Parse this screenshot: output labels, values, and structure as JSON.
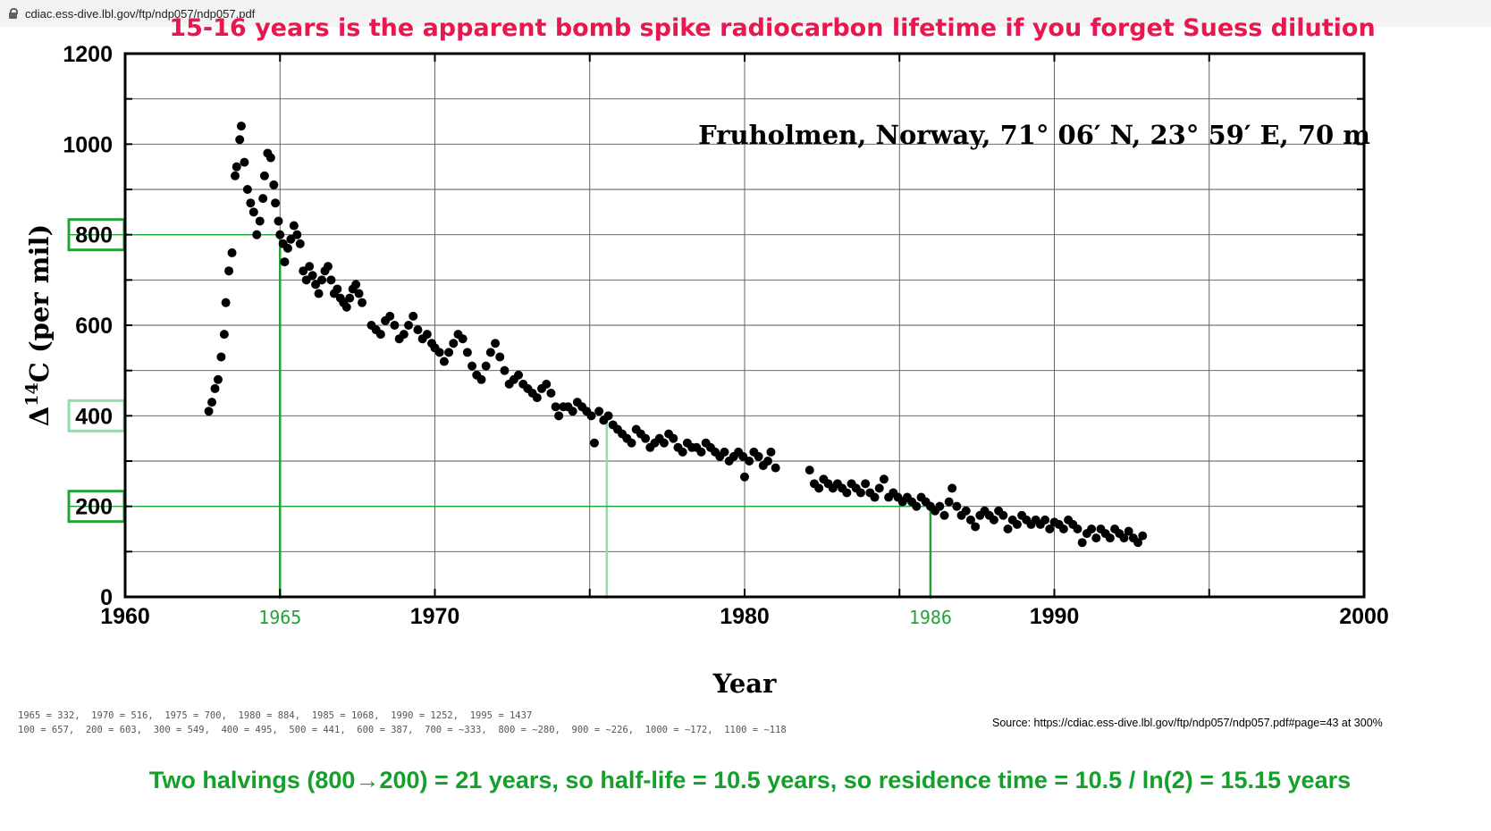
{
  "browser": {
    "url": "cdiac.ess-dive.lbl.gov/ftp/ndp057/ndp057.pdf"
  },
  "headline": "15-16 years is the apparent bomb spike radiocarbon lifetime if you forget Suess dilution",
  "conclusion": "Two halvings (800→200) = 21 years,  so half-life = 10.5 years,  so residence time = 10.5 / ln(2) = 15.15 years",
  "notes": {
    "line1": "1965 = 332,  1970 = 516,  1975 = 700,  1980 = 884,  1985 = 1068,  1990 = 1252,  1995 = 1437",
    "line2": "100 = 657,  200 = 603,  300 = 549,  400 = 495,  500 = 441,  600 = 387,  700 = ~333,  800 = ~280,  900 = ~226,  1000 = ~172,  1100 = ~118"
  },
  "source": "Source: https://cdiac.ess-dive.lbl.gov/ftp/ndp057/ndp057.pdf#page=43 at 300%",
  "colors": {
    "headline": "#e8174f",
    "conclusion": "#14a02a",
    "annotation_green": "#22a33a",
    "annotation_light_green": "#8fe0a8",
    "points": "#000000"
  },
  "chart_data": {
    "type": "scatter",
    "subtitle": "Fruholmen, Norway, 71° 06′ N, 23° 59′ E, 70 m",
    "xlabel": "Year",
    "ylabel_prefix": "Δ",
    "ylabel_sup": "14",
    "ylabel_suffix": "C (per mil)",
    "xlim": [
      1960,
      2000
    ],
    "ylim": [
      0,
      1200
    ],
    "xticks": [
      "1960",
      "1970",
      "1980",
      "1990",
      "2000"
    ],
    "yticks": [
      "0",
      "200",
      "400",
      "600",
      "800",
      "1000",
      "1200"
    ],
    "grid": true,
    "series": [
      {
        "points": [
          [
            1962.7,
            410
          ],
          [
            1962.8,
            430
          ],
          [
            1962.9,
            460
          ],
          [
            1963.0,
            480
          ],
          [
            1963.1,
            530
          ],
          [
            1963.2,
            580
          ],
          [
            1963.25,
            650
          ],
          [
            1963.35,
            720
          ],
          [
            1963.45,
            760
          ],
          [
            1963.55,
            930
          ],
          [
            1963.6,
            950
          ],
          [
            1963.7,
            1010
          ],
          [
            1963.75,
            1040
          ],
          [
            1963.85,
            960
          ],
          [
            1963.95,
            900
          ],
          [
            1964.05,
            870
          ],
          [
            1964.15,
            850
          ],
          [
            1964.25,
            800
          ],
          [
            1964.35,
            830
          ],
          [
            1964.45,
            880
          ],
          [
            1964.5,
            930
          ],
          [
            1964.6,
            980
          ],
          [
            1964.7,
            970
          ],
          [
            1964.8,
            910
          ],
          [
            1964.85,
            870
          ],
          [
            1964.95,
            830
          ],
          [
            1965.0,
            800
          ],
          [
            1965.1,
            780
          ],
          [
            1965.15,
            740
          ],
          [
            1965.25,
            770
          ],
          [
            1965.35,
            790
          ],
          [
            1965.45,
            820
          ],
          [
            1965.55,
            800
          ],
          [
            1965.65,
            780
          ],
          [
            1965.75,
            720
          ],
          [
            1965.85,
            700
          ],
          [
            1965.95,
            730
          ],
          [
            1966.05,
            710
          ],
          [
            1966.15,
            690
          ],
          [
            1966.25,
            670
          ],
          [
            1966.35,
            700
          ],
          [
            1966.45,
            720
          ],
          [
            1966.55,
            730
          ],
          [
            1966.65,
            700
          ],
          [
            1966.75,
            670
          ],
          [
            1966.85,
            680
          ],
          [
            1966.95,
            660
          ],
          [
            1967.05,
            650
          ],
          [
            1967.15,
            640
          ],
          [
            1967.25,
            660
          ],
          [
            1967.35,
            680
          ],
          [
            1967.45,
            690
          ],
          [
            1967.55,
            670
          ],
          [
            1967.65,
            650
          ],
          [
            1967.95,
            600
          ],
          [
            1968.1,
            590
          ],
          [
            1968.25,
            580
          ],
          [
            1968.4,
            610
          ],
          [
            1968.55,
            620
          ],
          [
            1968.7,
            600
          ],
          [
            1968.85,
            570
          ],
          [
            1969.0,
            580
          ],
          [
            1969.15,
            600
          ],
          [
            1969.3,
            620
          ],
          [
            1969.45,
            590
          ],
          [
            1969.6,
            570
          ],
          [
            1969.75,
            580
          ],
          [
            1969.9,
            560
          ],
          [
            1970.0,
            550
          ],
          [
            1970.15,
            540
          ],
          [
            1970.3,
            520
          ],
          [
            1970.45,
            540
          ],
          [
            1970.6,
            560
          ],
          [
            1970.75,
            580
          ],
          [
            1970.9,
            570
          ],
          [
            1971.05,
            540
          ],
          [
            1971.2,
            510
          ],
          [
            1971.35,
            490
          ],
          [
            1971.5,
            480
          ],
          [
            1971.65,
            510
          ],
          [
            1971.8,
            540
          ],
          [
            1971.95,
            560
          ],
          [
            1972.1,
            530
          ],
          [
            1972.25,
            500
          ],
          [
            1972.4,
            470
          ],
          [
            1972.55,
            480
          ],
          [
            1972.7,
            490
          ],
          [
            1972.85,
            470
          ],
          [
            1973.0,
            460
          ],
          [
            1973.15,
            450
          ],
          [
            1973.3,
            440
          ],
          [
            1973.45,
            460
          ],
          [
            1973.6,
            470
          ],
          [
            1973.75,
            450
          ],
          [
            1973.9,
            420
          ],
          [
            1974.0,
            400
          ],
          [
            1974.15,
            420
          ],
          [
            1974.3,
            420
          ],
          [
            1974.45,
            410
          ],
          [
            1974.6,
            430
          ],
          [
            1974.75,
            420
          ],
          [
            1974.9,
            410
          ],
          [
            1975.05,
            400
          ],
          [
            1975.15,
            340
          ],
          [
            1975.3,
            410
          ],
          [
            1975.45,
            390
          ],
          [
            1975.6,
            400
          ],
          [
            1975.75,
            380
          ],
          [
            1975.9,
            370
          ],
          [
            1976.05,
            360
          ],
          [
            1976.2,
            350
          ],
          [
            1976.35,
            340
          ],
          [
            1976.5,
            370
          ],
          [
            1976.65,
            360
          ],
          [
            1976.8,
            350
          ],
          [
            1976.95,
            330
          ],
          [
            1977.1,
            340
          ],
          [
            1977.25,
            350
          ],
          [
            1977.4,
            340
          ],
          [
            1977.55,
            360
          ],
          [
            1977.7,
            350
          ],
          [
            1977.85,
            330
          ],
          [
            1978.0,
            320
          ],
          [
            1978.15,
            340
          ],
          [
            1978.3,
            330
          ],
          [
            1978.45,
            330
          ],
          [
            1978.6,
            320
          ],
          [
            1978.75,
            340
          ],
          [
            1978.9,
            330
          ],
          [
            1979.05,
            320
          ],
          [
            1979.2,
            310
          ],
          [
            1979.35,
            320
          ],
          [
            1979.5,
            300
          ],
          [
            1979.65,
            310
          ],
          [
            1979.8,
            320
          ],
          [
            1979.95,
            310
          ],
          [
            1980.0,
            265
          ],
          [
            1980.15,
            300
          ],
          [
            1980.3,
            320
          ],
          [
            1980.45,
            310
          ],
          [
            1980.6,
            290
          ],
          [
            1980.75,
            300
          ],
          [
            1980.85,
            320
          ],
          [
            1981.0,
            285
          ],
          [
            1982.1,
            280
          ],
          [
            1982.25,
            250
          ],
          [
            1982.4,
            240
          ],
          [
            1982.55,
            260
          ],
          [
            1982.7,
            250
          ],
          [
            1982.85,
            240
          ],
          [
            1983.0,
            250
          ],
          [
            1983.15,
            240
          ],
          [
            1983.3,
            230
          ],
          [
            1983.45,
            250
          ],
          [
            1983.6,
            240
          ],
          [
            1983.75,
            230
          ],
          [
            1983.9,
            250
          ],
          [
            1984.05,
            230
          ],
          [
            1984.2,
            220
          ],
          [
            1984.35,
            240
          ],
          [
            1984.5,
            260
          ],
          [
            1984.65,
            220
          ],
          [
            1984.8,
            230
          ],
          [
            1984.95,
            220
          ],
          [
            1985.1,
            210
          ],
          [
            1985.25,
            220
          ],
          [
            1985.4,
            210
          ],
          [
            1985.55,
            200
          ],
          [
            1985.7,
            220
          ],
          [
            1985.85,
            210
          ],
          [
            1986.0,
            200
          ],
          [
            1986.15,
            190
          ],
          [
            1986.3,
            200
          ],
          [
            1986.45,
            180
          ],
          [
            1986.6,
            210
          ],
          [
            1986.7,
            240
          ],
          [
            1986.85,
            200
          ],
          [
            1987.0,
            180
          ],
          [
            1987.15,
            190
          ],
          [
            1987.3,
            170
          ],
          [
            1987.45,
            155
          ],
          [
            1987.6,
            180
          ],
          [
            1987.75,
            190
          ],
          [
            1987.9,
            180
          ],
          [
            1988.05,
            170
          ],
          [
            1988.2,
            190
          ],
          [
            1988.35,
            180
          ],
          [
            1988.5,
            150
          ],
          [
            1988.65,
            170
          ],
          [
            1988.8,
            160
          ],
          [
            1988.95,
            180
          ],
          [
            1989.1,
            170
          ],
          [
            1989.25,
            160
          ],
          [
            1989.4,
            170
          ],
          [
            1989.55,
            160
          ],
          [
            1989.7,
            170
          ],
          [
            1989.85,
            150
          ],
          [
            1990.0,
            165
          ],
          [
            1990.15,
            160
          ],
          [
            1990.3,
            150
          ],
          [
            1990.45,
            170
          ],
          [
            1990.6,
            160
          ],
          [
            1990.75,
            150
          ],
          [
            1990.9,
            120
          ],
          [
            1991.05,
            140
          ],
          [
            1991.2,
            150
          ],
          [
            1991.35,
            130
          ],
          [
            1991.5,
            150
          ],
          [
            1991.65,
            140
          ],
          [
            1991.8,
            130
          ],
          [
            1991.95,
            150
          ],
          [
            1992.1,
            140
          ],
          [
            1992.25,
            130
          ],
          [
            1992.4,
            145
          ],
          [
            1992.55,
            130
          ],
          [
            1992.7,
            120
          ],
          [
            1992.85,
            135
          ]
        ]
      }
    ],
    "annotations": {
      "boxed_yticks": [
        {
          "label": "800",
          "style": "green"
        },
        {
          "label": "400",
          "style": "light"
        },
        {
          "label": "200",
          "style": "green"
        }
      ],
      "green_year_labels": [
        "1965",
        "1986"
      ],
      "markers": [
        {
          "x": 1965.0,
          "y": 800,
          "style": "green"
        },
        {
          "x": 1975.55,
          "y": 400,
          "style": "light"
        },
        {
          "x": 1986.0,
          "y": 200,
          "style": "green"
        }
      ]
    }
  }
}
